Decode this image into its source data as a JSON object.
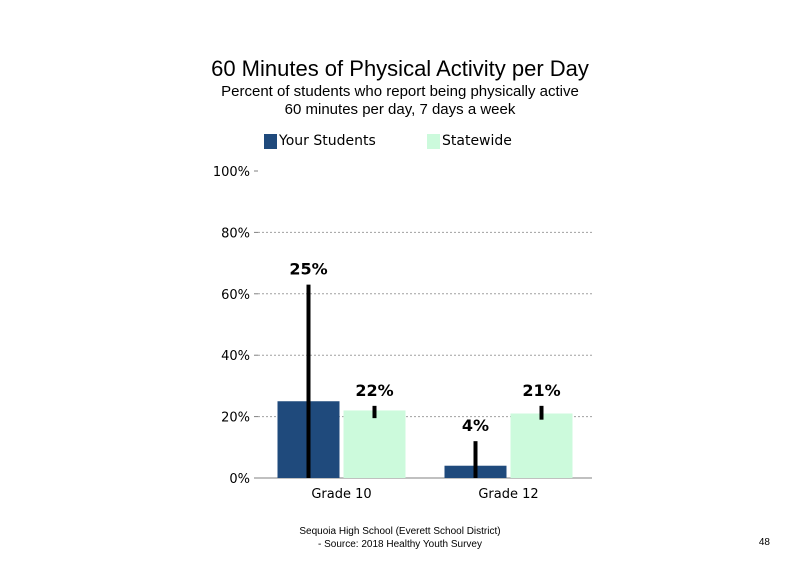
{
  "chart_data": {
    "type": "bar",
    "title": "60 Minutes of Physical Activity per Day",
    "subtitle_lines": [
      "Percent of students who report being physically active",
      "60 minutes per day, 7 days a week"
    ],
    "categories": [
      "Grade 10",
      "Grade 12"
    ],
    "series": [
      {
        "name": "Your Students",
        "color": "#1f4a7c",
        "values": [
          25,
          4
        ],
        "labels": [
          "25%",
          "4%"
        ],
        "error_low": [
          0,
          0
        ],
        "error_high": [
          63,
          12
        ]
      },
      {
        "name": "Statewide",
        "color": "#ccfadc",
        "values": [
          22,
          21
        ],
        "labels": [
          "22%",
          "21%"
        ],
        "error_low": [
          19.5,
          19
        ],
        "error_high": [
          23.5,
          23.5
        ]
      }
    ],
    "y_ticks": [
      "0%",
      "20%",
      "40%",
      "60%",
      "80%",
      "100%"
    ],
    "ylim": [
      0,
      100
    ],
    "gridlines": "dotted",
    "legend_position": "top"
  },
  "footer": {
    "line1": "Sequoia High School (Everett School District)",
    "line2": "- Source: 2018 Healthy Youth Survey"
  },
  "page_number": "48"
}
